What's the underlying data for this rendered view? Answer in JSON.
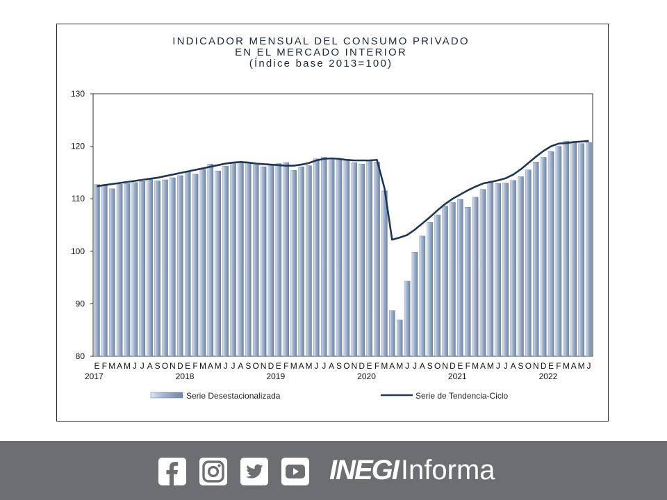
{
  "chart_data": {
    "type": "bar",
    "title_lines": [
      "INDICADOR MENSUAL DEL CONSUMO PRIVADO",
      "EN EL MERCADO INTERIOR",
      "(Índice base 2013=100)"
    ],
    "ylim": [
      80,
      130
    ],
    "yticks": [
      "130",
      "120",
      "110",
      "100",
      "90",
      "80"
    ],
    "month_letters": [
      "E",
      "F",
      "M",
      "A",
      "M",
      "J",
      "J",
      "A",
      "S",
      "O",
      "N",
      "D"
    ],
    "years": [
      "2017",
      "2018",
      "2019",
      "2020",
      "2021",
      "2022"
    ],
    "legend_placement": "bottom",
    "series": [
      {
        "name": "Serie Desestacionalizada",
        "kind": "bar",
        "color": "#8fa3c0",
        "values": [
          112.7,
          112.5,
          111.9,
          112.8,
          112.9,
          113.1,
          113.3,
          113.8,
          113.4,
          113.6,
          114.0,
          114.4,
          115.2,
          114.7,
          115.6,
          116.6,
          115.3,
          116.2,
          116.9,
          117.0,
          116.8,
          116.4,
          116.1,
          116.6,
          116.7,
          116.9,
          115.4,
          116.1,
          116.3,
          117.6,
          117.9,
          117.7,
          117.4,
          117.5,
          116.9,
          116.6,
          117.3,
          117.0,
          111.5,
          88.7,
          86.9,
          94.3,
          99.8,
          102.9,
          105.5,
          106.9,
          108.6,
          109.3,
          109.9,
          108.4,
          110.3,
          111.8,
          113.1,
          112.9,
          113.0,
          113.5,
          114.2,
          115.5,
          117.0,
          117.9,
          119.0,
          120.0,
          121.0,
          120.9,
          120.5,
          120.7
        ]
      },
      {
        "name": "Serie de Tendencia-Ciclo",
        "kind": "line",
        "color": "#1e3655",
        "values": [
          112.4,
          112.6,
          112.8,
          113.0,
          113.2,
          113.4,
          113.6,
          113.8,
          114.0,
          114.3,
          114.6,
          114.9,
          115.2,
          115.5,
          115.8,
          116.1,
          116.4,
          116.7,
          116.9,
          117.0,
          116.9,
          116.7,
          116.6,
          116.5,
          116.4,
          116.3,
          116.3,
          116.5,
          116.8,
          117.3,
          117.6,
          117.7,
          117.6,
          117.4,
          117.3,
          117.3,
          117.3,
          117.4,
          112.0,
          102.2,
          102.6,
          103.1,
          104.1,
          105.3,
          106.5,
          107.8,
          109.0,
          110.0,
          110.8,
          111.6,
          112.3,
          112.9,
          113.2,
          113.5,
          113.9,
          114.6,
          115.6,
          116.8,
          118.0,
          119.1,
          120.0,
          120.5,
          120.6,
          120.8,
          120.9,
          121.0
        ]
      }
    ]
  },
  "footer": {
    "background": "#6d6e71",
    "icons": [
      "facebook-icon",
      "instagram-icon",
      "twitter-icon",
      "youtube-icon"
    ],
    "brand_strong": "INEGI",
    "brand_light": "Informa"
  }
}
